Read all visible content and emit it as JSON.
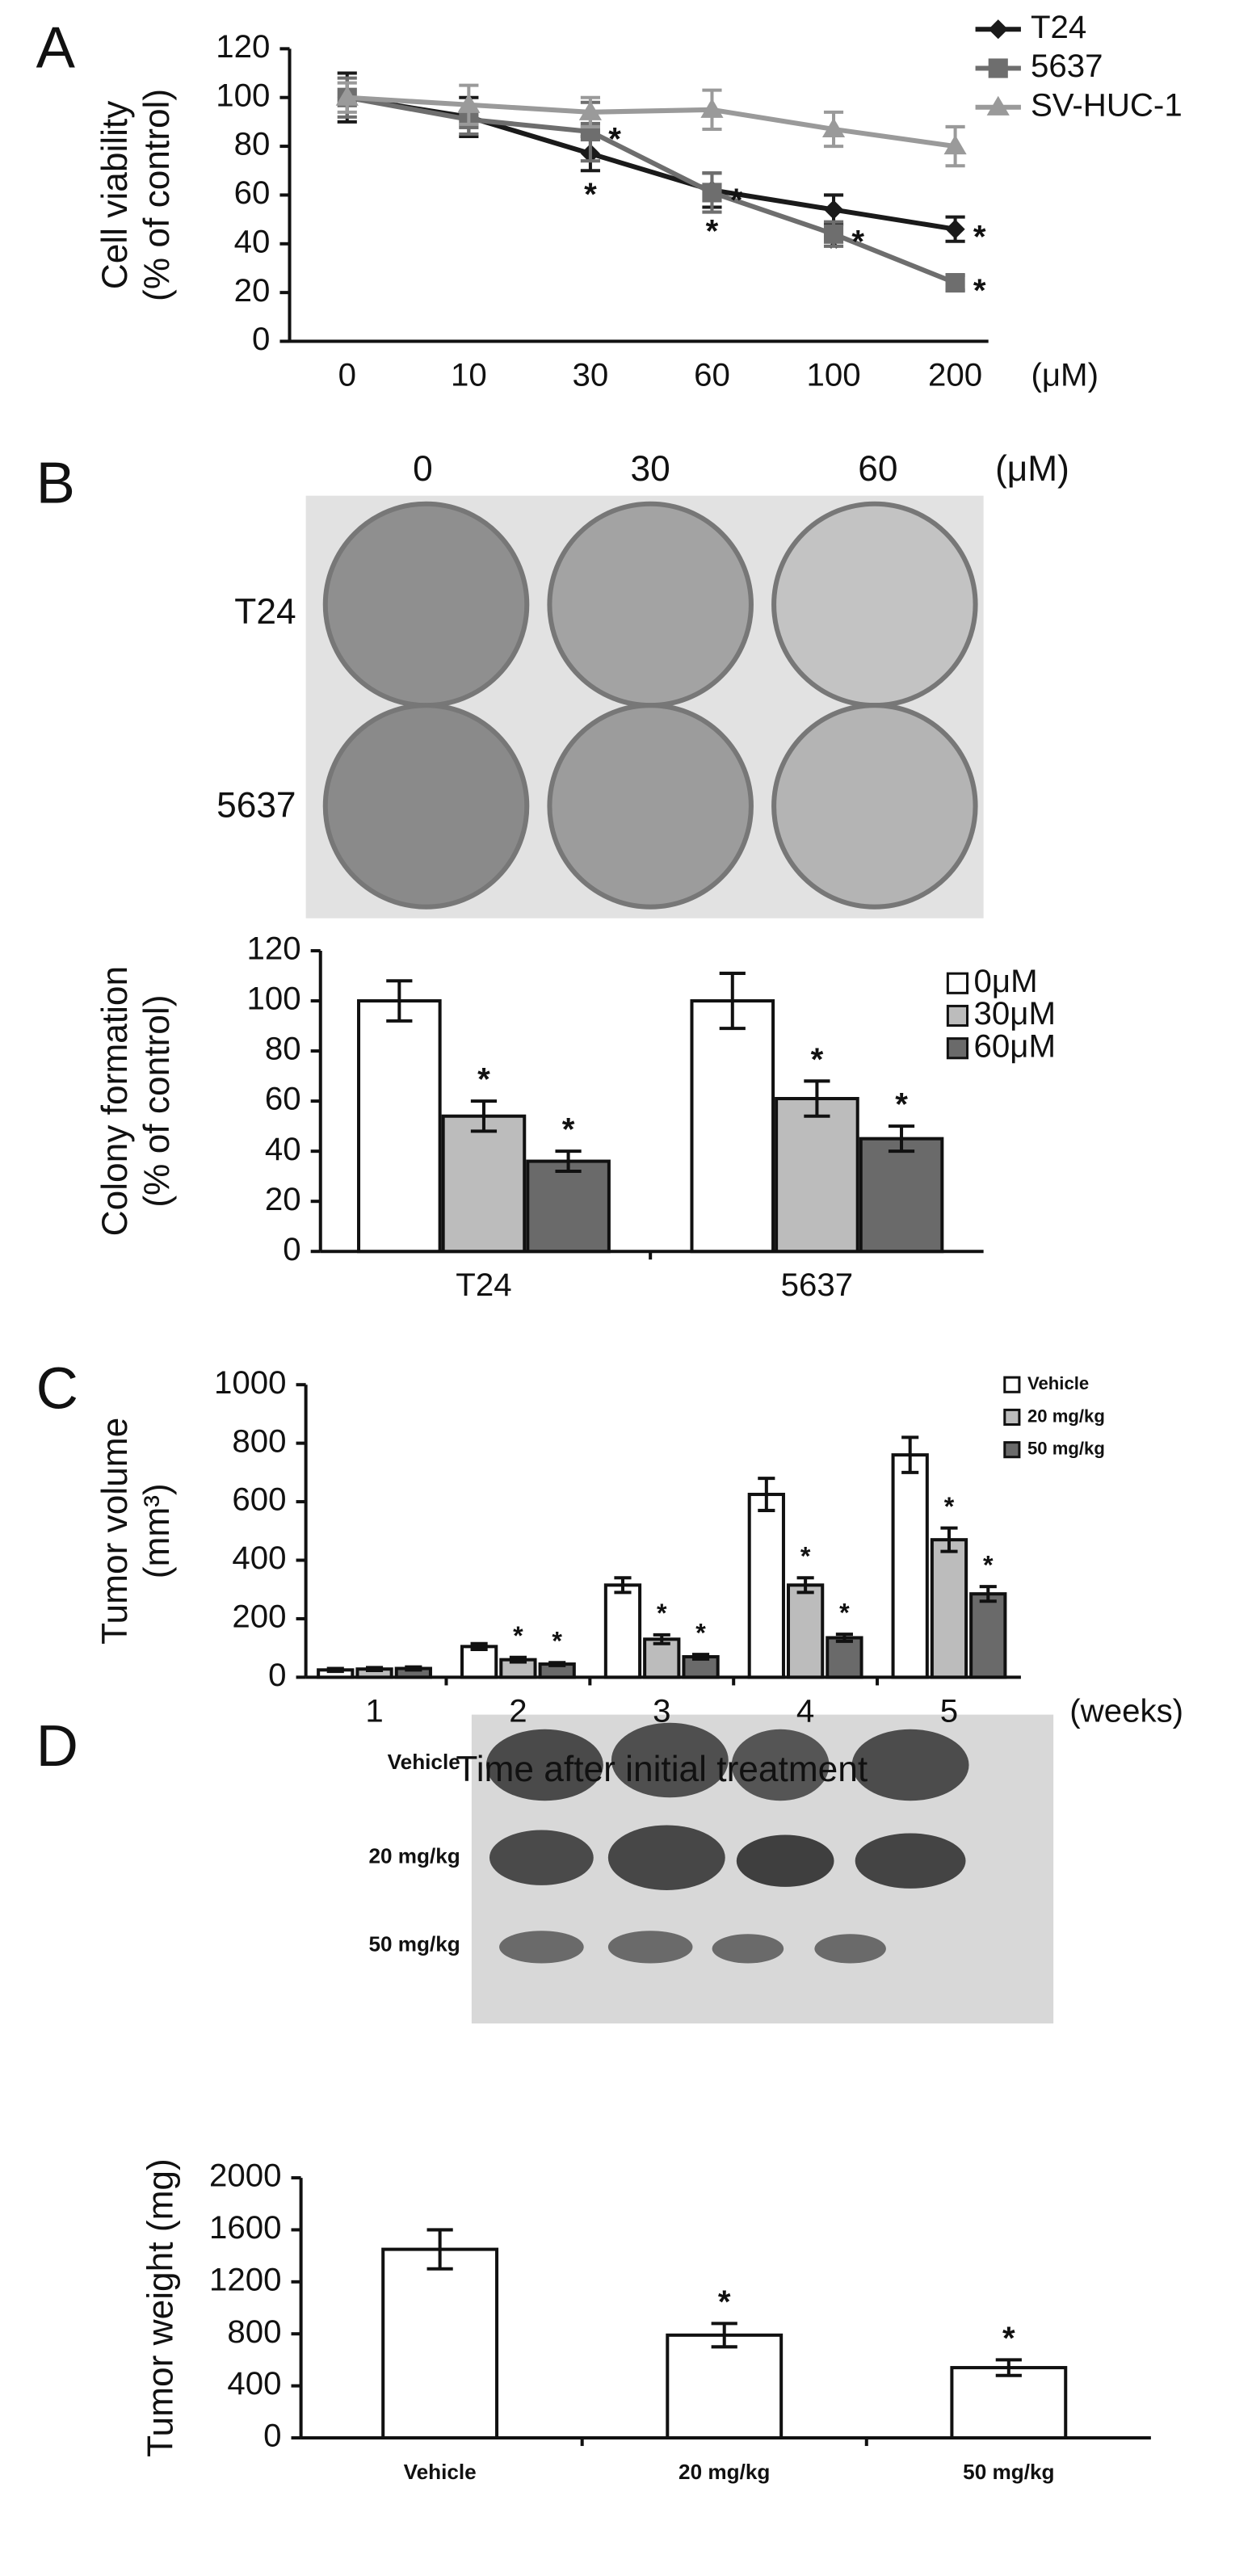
{
  "images": [
    {
      "column_labels": [
        "0",
        "30",
        "60"
      ],
      "unit": "(μM)",
      "row_labels": [
        "T24",
        "5637"
      ]
    },
    {
      "row_labels": [
        "Vehicle",
        "20 mg/kg",
        "50 mg/kg"
      ]
    }
  ],
  "chart_data": [
    {
      "type": "line",
      "panel": "A",
      "ylabel": [
        "Cell viability",
        "(% of control)"
      ],
      "categories": [
        "0",
        "10",
        "30",
        "60",
        "100",
        "200"
      ],
      "x_unit": "(μM)",
      "ylim": [
        0,
        120
      ],
      "yticks": [
        0,
        20,
        40,
        60,
        80,
        100,
        120
      ],
      "series": [
        {
          "name": "T24",
          "color": "#1a1a1a",
          "marker": "diamond",
          "values": [
            100,
            92,
            77,
            62,
            54,
            46
          ],
          "errors": [
            10,
            8,
            7,
            7,
            6,
            5
          ],
          "significance": [
            null,
            null,
            "*",
            "*",
            "*",
            "*"
          ]
        },
        {
          "name": "5637",
          "color": "#6e6e6e",
          "marker": "square",
          "values": [
            100,
            91,
            86,
            61,
            44,
            24
          ],
          "errors": [
            8,
            6,
            12,
            8,
            5,
            3
          ],
          "significance": [
            null,
            null,
            "*",
            "*",
            "*",
            "*"
          ]
        },
        {
          "name": "SV-HUC-1",
          "color": "#9a9a9a",
          "marker": "triangle",
          "values": [
            100,
            97,
            94,
            95,
            87,
            80
          ],
          "errors": [
            6,
            8,
            6,
            8,
            7,
            8
          ],
          "significance": [
            null,
            null,
            null,
            null,
            null,
            null
          ]
        }
      ]
    },
    {
      "type": "bar",
      "panel": "B",
      "ylabel": [
        "Colony formation",
        "(% of control)"
      ],
      "categories": [
        "T24",
        "5637"
      ],
      "ylim": [
        0,
        120
      ],
      "yticks": [
        0,
        20,
        40,
        60,
        80,
        100,
        120
      ],
      "series": [
        {
          "name": "0μM",
          "color": "#ffffff",
          "values": [
            100,
            100
          ],
          "errors": [
            8,
            11
          ],
          "significance": [
            null,
            null
          ]
        },
        {
          "name": "30μM",
          "color": "#bcbcbc",
          "values": [
            54,
            61
          ],
          "errors": [
            6,
            7
          ],
          "significance": [
            "*",
            "*"
          ]
        },
        {
          "name": "60μM",
          "color": "#6a6a6a",
          "values": [
            36,
            45
          ],
          "errors": [
            4,
            5
          ],
          "significance": [
            "*",
            "*"
          ]
        }
      ]
    },
    {
      "type": "bar",
      "panel": "C",
      "ylabel": [
        "Tumor volume",
        "(mm³)"
      ],
      "xlabel": "Time after initial treatment",
      "categories": [
        "1",
        "2",
        "3",
        "4",
        "5"
      ],
      "x_unit": "(weeks)",
      "ylim": [
        0,
        1000
      ],
      "yticks": [
        0,
        200,
        400,
        600,
        800,
        1000
      ],
      "series": [
        {
          "name": "Vehicle",
          "color": "#ffffff",
          "values": [
            25,
            105,
            315,
            625,
            760
          ],
          "errors": [
            5,
            10,
            25,
            55,
            60
          ],
          "significance": [
            null,
            null,
            null,
            null,
            null
          ]
        },
        {
          "name": "20 mg/kg",
          "color": "#bcbcbc",
          "values": [
            28,
            60,
            130,
            315,
            470
          ],
          "errors": [
            5,
            8,
            15,
            25,
            40
          ],
          "significance": [
            null,
            "*",
            "*",
            "*",
            "*"
          ]
        },
        {
          "name": "50 mg/kg",
          "color": "#6a6a6a",
          "values": [
            30,
            45,
            70,
            135,
            285
          ],
          "errors": [
            5,
            5,
            8,
            12,
            25
          ],
          "significance": [
            null,
            "*",
            "*",
            "*",
            "*"
          ]
        }
      ]
    },
    {
      "type": "bar",
      "panel": "D",
      "ylabel": "Tumor weight (mg)",
      "categories": [
        "Vehicle",
        "20 mg/kg",
        "50 mg/kg"
      ],
      "ylim": [
        0,
        2000
      ],
      "yticks": [
        0,
        400,
        800,
        1200,
        1600,
        2000
      ],
      "color": "#ffffff",
      "values": [
        1450,
        790,
        540
      ],
      "errors": [
        150,
        90,
        60
      ],
      "significance": [
        null,
        "*",
        "*"
      ]
    }
  ]
}
